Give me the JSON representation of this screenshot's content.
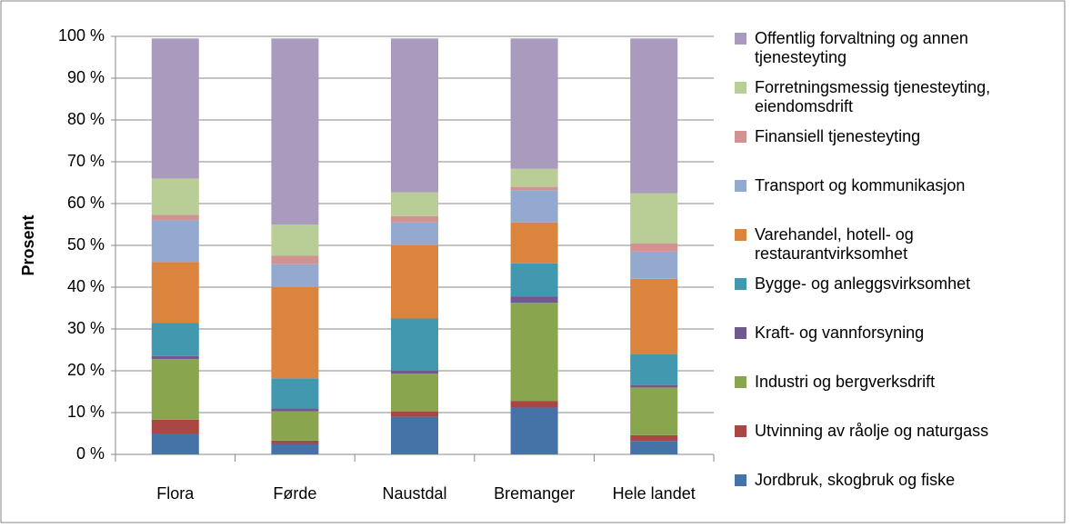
{
  "chart_data": {
    "type": "stacked_bar",
    "ylabel": "Prosent",
    "categories": [
      "Flora",
      "Førde",
      "Naustdal",
      "Bremanger",
      "Hele landet"
    ],
    "series": [
      {
        "name": "Jordbruk, skogbruk og fiske",
        "color": "#4572a7",
        "values": [
          5,
          2.5,
          9,
          11.2,
          3.2
        ]
      },
      {
        "name": "Utvinning av råolje og naturgass",
        "color": "#aa4643",
        "values": [
          3.3,
          0.8,
          1.3,
          1.6,
          1.4
        ]
      },
      {
        "name": "Industri og bergverksdrift",
        "color": "#89a54e",
        "values": [
          14.5,
          7,
          9,
          23.5,
          11.4
        ]
      },
      {
        "name": "Kraft- og vannforsyning",
        "color": "#71588f",
        "values": [
          0.7,
          0.7,
          0.7,
          1.5,
          0.6
        ]
      },
      {
        "name": "Bygge- og anleggsvirksomhet",
        "color": "#4198af",
        "values": [
          8,
          7.2,
          12.5,
          7.9,
          7.4
        ]
      },
      {
        "name": "Varehandel, hotell- og restaurantvirksomhet",
        "color": "#db843d",
        "values": [
          14.5,
          21.8,
          17.5,
          9.8,
          18
        ]
      },
      {
        "name": "Transport og kommunikasjon",
        "color": "#93a9cf",
        "values": [
          10,
          5.5,
          5.5,
          7.7,
          6.5
        ]
      },
      {
        "name": "Finansiell tjenesteyting",
        "color": "#d19392",
        "values": [
          1.3,
          2,
          1.5,
          0.8,
          2
        ]
      },
      {
        "name": "Forretningsmessig tjenesteyting, eiendomsdrift",
        "color": "#b9cd96",
        "values": [
          8.7,
          7.5,
          5.7,
          4.3,
          12
        ]
      },
      {
        "name": "Offentlig forvaltning og annen tjenesteyting",
        "color": "#a99bbd",
        "values": [
          33.5,
          44.5,
          36.8,
          31.2,
          37
        ]
      }
    ],
    "ylim": [
      0,
      100
    ],
    "yticks": [
      {
        "value": 0,
        "label": "0 %"
      },
      {
        "value": 10,
        "label": "10 %"
      },
      {
        "value": 20,
        "label": "20 %"
      },
      {
        "value": 30,
        "label": "30 %"
      },
      {
        "value": 40,
        "label": "40 %"
      },
      {
        "value": 50,
        "label": "50 %"
      },
      {
        "value": 60,
        "label": "60 %"
      },
      {
        "value": 70,
        "label": "70 %"
      },
      {
        "value": 80,
        "label": "80 %"
      },
      {
        "value": 90,
        "label": "90 %"
      },
      {
        "value": 100,
        "label": "100 %"
      }
    ],
    "grid": true,
    "legend": "right"
  }
}
